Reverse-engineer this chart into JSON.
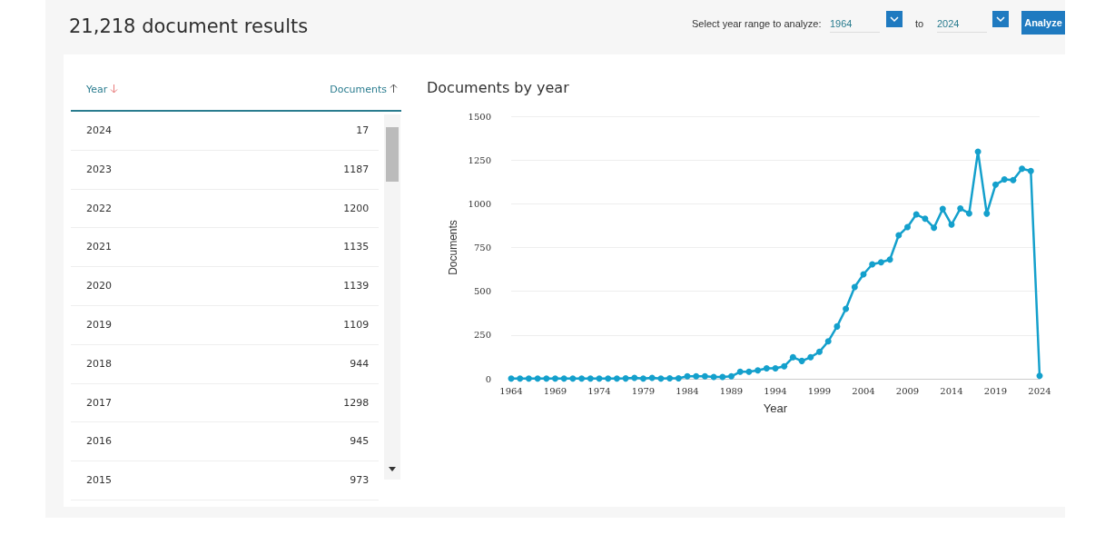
{
  "chart_data": [
    {
      "type": "other",
      "title": "21,218 document results",
      "annotations": [
        "Select year range to analyze:",
        "1964",
        "to",
        "2024",
        "Analyze",
        "Year",
        "Documents",
        "2024 17",
        "2023 1187",
        "2022 1200",
        "2021 1135",
        "2020 1139",
        "2019 1109",
        "2018 944",
        "2017 1298",
        "2016 945",
        "2015 973"
      ]
    },
    {
      "type": "line",
      "title": "Documents by year",
      "xlabel": "Year",
      "ylabel": "Documents",
      "x": [
        1964,
        1965,
        1966,
        1967,
        1968,
        1969,
        1970,
        1971,
        1972,
        1973,
        1974,
        1975,
        1976,
        1977,
        1978,
        1979,
        1980,
        1981,
        1982,
        1983,
        1984,
        1985,
        1986,
        1987,
        1988,
        1989,
        1990,
        1991,
        1992,
        1993,
        1994,
        1995,
        1996,
        1997,
        1998,
        1999,
        2000,
        2001,
        2002,
        2003,
        2004,
        2005,
        2006,
        2007,
        2008,
        2009,
        2010,
        2011,
        2012,
        2013,
        2014,
        2015,
        2016,
        2017,
        2018,
        2019,
        2020,
        2021,
        2022,
        2023,
        2024
      ],
      "series": [
        {
          "color": "#14a0cc",
          "values": [
            1,
            1,
            1,
            1,
            1,
            1,
            1,
            1,
            1,
            1,
            1,
            1,
            1,
            2,
            5,
            1,
            5,
            1,
            3,
            3,
            14,
            14,
            14,
            10,
            10,
            14,
            40,
            40,
            48,
            60,
            60,
            71,
            123,
            102,
            123,
            154,
            214,
            299,
            400,
            524,
            597,
            654,
            666,
            681,
            820,
            867,
            939,
            915,
            863,
            970,
            881,
            973,
            945,
            1298,
            944,
            1109,
            1139,
            1135,
            1200,
            1187,
            17
          ]
        }
      ],
      "xlim": [
        1964,
        2024
      ],
      "xticks": [
        1964,
        1969,
        1974,
        1979,
        1984,
        1989,
        1994,
        1999,
        2004,
        2009,
        2014,
        2019,
        2024
      ],
      "ylim": [
        0,
        1500
      ],
      "yticks": [
        0,
        250,
        500,
        750,
        1000,
        1250,
        1500
      ],
      "grid": "y",
      "marker": "circle",
      "line_style": "solid"
    }
  ]
}
